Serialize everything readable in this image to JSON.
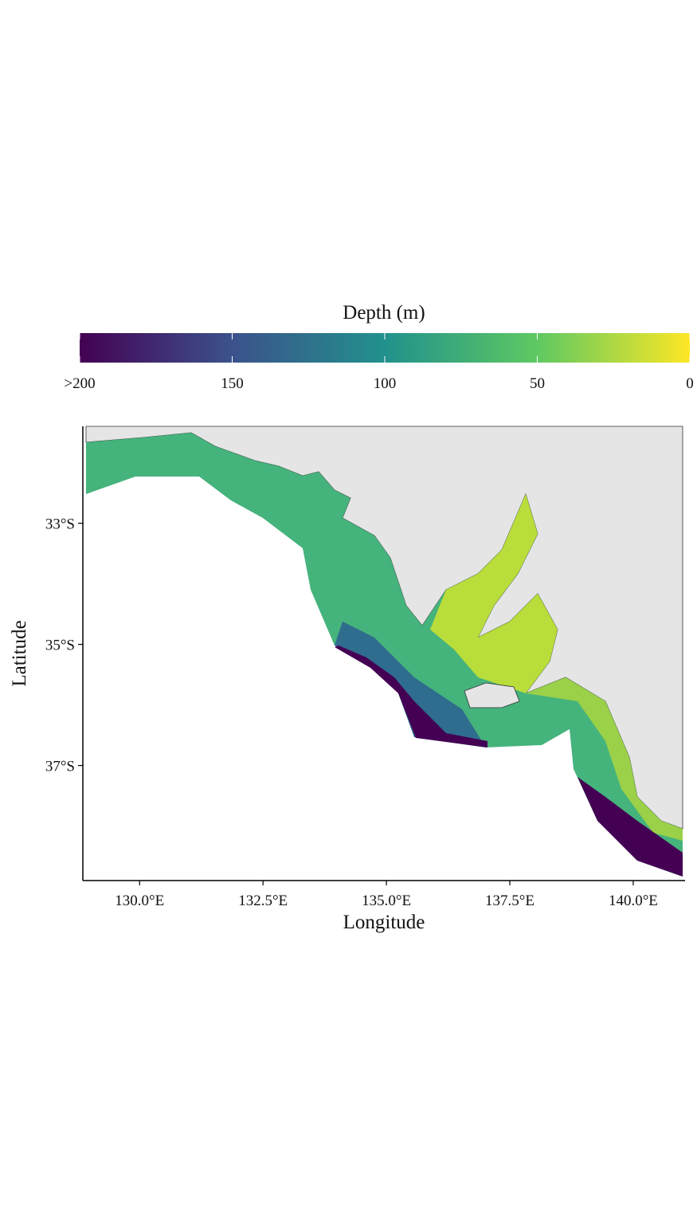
{
  "chart_data": {
    "type": "map",
    "colorbar": {
      "title": "Depth (m)",
      "lim": [
        200,
        0
      ],
      "ticks": [
        {
          "value": 200,
          "label": ">200"
        },
        150,
        100,
        50,
        0
      ],
      "colors": [
        "#440154",
        "#3b528b",
        "#21918c",
        "#5ec962",
        "#fde725"
      ]
    },
    "x_label": "Longitude",
    "y_label": "Latitude",
    "xlim": [
      128.85,
      141.05
    ],
    "ylim": [
      -38.9,
      -31.4
    ],
    "xticks": [
      {
        "value": 130,
        "label": "130.0°E"
      },
      {
        "value": 132.5,
        "label": "132.5°E"
      },
      {
        "value": 135,
        "label": "135.0°E"
      },
      {
        "value": 137.5,
        "label": "137.5°E"
      },
      {
        "value": 140,
        "label": "140.0°E"
      }
    ],
    "yticks": [
      {
        "value": -33,
        "label": "33°S"
      },
      {
        "value": -35,
        "label": "35°S"
      },
      {
        "value": -37,
        "label": "37°S"
      }
    ]
  }
}
